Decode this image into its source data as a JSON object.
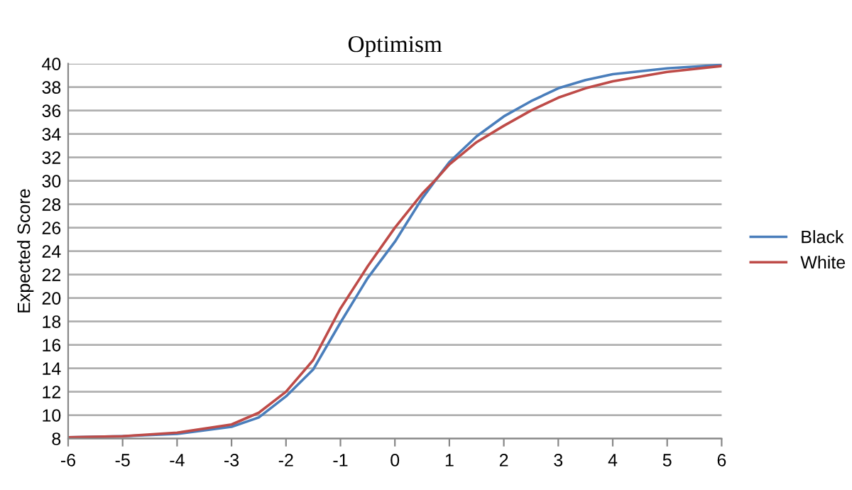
{
  "chart_data": {
    "type": "line",
    "title": "Optimism",
    "ylabel": "Expected Score",
    "x": [
      -6,
      -5,
      -4,
      -3,
      -2.5,
      -2,
      -1.5,
      -1,
      -0.5,
      0,
      0.5,
      0.77,
      1,
      1.5,
      2,
      2.5,
      3,
      3.5,
      4,
      5,
      6
    ],
    "series": [
      {
        "name": "Black",
        "color": "#4a7ebb",
        "values": [
          8.1,
          8.2,
          8.4,
          9.0,
          9.8,
          11.6,
          13.9,
          17.9,
          21.7,
          24.8,
          28.5,
          30.2,
          31.6,
          33.8,
          35.5,
          36.8,
          37.9,
          38.6,
          39.1,
          39.6,
          39.9
        ]
      },
      {
        "name": "White",
        "color": "#be4b48",
        "values": [
          8.1,
          8.2,
          8.5,
          9.2,
          10.2,
          12.0,
          14.7,
          19.1,
          22.7,
          26.0,
          28.9,
          30.2,
          31.4,
          33.3,
          34.7,
          36.0,
          37.1,
          37.9,
          38.5,
          39.3,
          39.8
        ]
      }
    ],
    "xlim": [
      -6,
      6
    ],
    "xticks": [
      -6,
      -5,
      -4,
      -3,
      -2,
      -1,
      0,
      1,
      2,
      3,
      4,
      5,
      6
    ],
    "ylim": [
      8,
      40
    ],
    "yticks": [
      8,
      10,
      12,
      14,
      16,
      18,
      20,
      22,
      24,
      26,
      28,
      30,
      32,
      34,
      36,
      38,
      40
    ],
    "grid": "y",
    "legend": "right",
    "marker": "none",
    "line_style": "solid"
  }
}
